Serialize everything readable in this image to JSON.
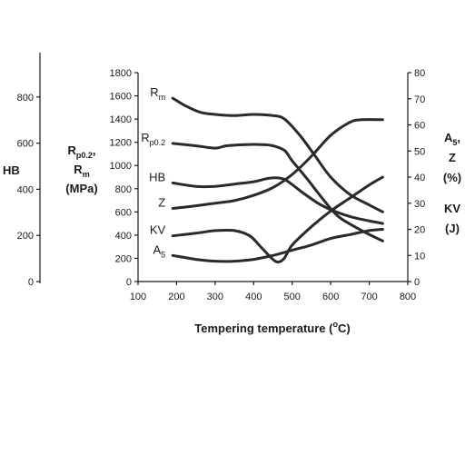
{
  "chart_data": {
    "type": "line",
    "xlabel": "Tempering temperature (",
    "xlabel_sup": "o",
    "xlabel_tail": "C)",
    "xlim": [
      100,
      800
    ],
    "x_ticks": [
      "100",
      "200",
      "300",
      "400",
      "500",
      "600",
      "700",
      "800"
    ],
    "axes": {
      "hb": {
        "title": "HB",
        "range": [
          0,
          1000
        ],
        "ticks": [
          "0",
          "200",
          "400",
          "600",
          "800"
        ]
      },
      "strength": {
        "title_lines": [
          {
            "main": "R",
            "sub": "p0.2",
            "tail": ","
          },
          {
            "main": "R",
            "sub": "m",
            "tail": ""
          },
          {
            "main": "(MPa)",
            "sub": "",
            "tail": ""
          }
        ],
        "range": [
          0,
          1800
        ],
        "ticks": [
          "0",
          "200",
          "400",
          "600",
          "800",
          "1000",
          "1200",
          "1400",
          "1600",
          "1800"
        ]
      },
      "percent": {
        "title_lines": [
          {
            "main": "A",
            "sub": "5",
            "tail": ","
          },
          {
            "main": "Z",
            "sub": "",
            "tail": ""
          },
          {
            "main": "(%)",
            "sub": "",
            "tail": ""
          }
        ],
        "range": [
          0,
          80
        ],
        "ticks": [
          "0",
          "10",
          "20",
          "30",
          "40",
          "50",
          "60",
          "70",
          "80"
        ]
      },
      "kv": {
        "title_lines": [
          {
            "main": "KV",
            "sub": "",
            "tail": ""
          },
          {
            "main": "(J)",
            "sub": "",
            "tail": ""
          }
        ]
      }
    },
    "series": [
      {
        "name": "Rm",
        "label_main": "R",
        "label_sub": "m",
        "axis": "strength",
        "x": [
          190,
          220,
          260,
          300,
          350,
          400,
          450,
          480,
          520,
          560,
          600,
          650,
          700,
          735
        ],
        "y": [
          1580,
          1520,
          1460,
          1440,
          1430,
          1440,
          1430,
          1400,
          1260,
          1080,
          900,
          750,
          660,
          600
        ]
      },
      {
        "name": "Rp0.2",
        "label_main": "R",
        "label_sub": "p0.2",
        "axis": "strength",
        "x": [
          190,
          250,
          300,
          330,
          380,
          420,
          450,
          480,
          500,
          540,
          580,
          620,
          680,
          735
        ],
        "y": [
          1190,
          1170,
          1150,
          1170,
          1180,
          1180,
          1170,
          1130,
          1040,
          880,
          710,
          560,
          440,
          350
        ]
      },
      {
        "name": "HB",
        "label_main": "HB",
        "label_sub": "",
        "axis": "strength",
        "x": [
          190,
          250,
          300,
          350,
          400,
          440,
          470,
          490,
          530,
          580,
          650,
          735
        ],
        "y": [
          850,
          820,
          820,
          840,
          860,
          890,
          890,
          860,
          760,
          650,
          560,
          500
        ]
      },
      {
        "name": "Z",
        "label_main": "Z",
        "label_sub": "",
        "axis": "percent",
        "x": [
          190,
          250,
          300,
          350,
          400,
          450,
          500,
          550,
          600,
          650,
          680,
          735
        ],
        "y": [
          28,
          29,
          30,
          31,
          33,
          36,
          41,
          48,
          56,
          61,
          62,
          62
        ]
      },
      {
        "name": "KV",
        "label_main": "KV",
        "label_sub": "",
        "axis": "percent",
        "x": [
          190,
          250,
          300,
          350,
          390,
          420,
          450,
          465,
          480,
          500,
          550,
          600,
          650,
          700,
          735
        ],
        "y": [
          17.5,
          18.5,
          19.5,
          19.5,
          17.5,
          13,
          8.5,
          7.5,
          9,
          14,
          21,
          27,
          32,
          37,
          40
        ]
      },
      {
        "name": "A5",
        "label_main": "A",
        "label_sub": "5",
        "axis": "percent",
        "x": [
          190,
          250,
          300,
          350,
          400,
          450,
          500,
          550,
          600,
          650,
          700,
          735
        ],
        "y": [
          10,
          8.5,
          7.8,
          7.8,
          8.5,
          10,
          12,
          14,
          16.5,
          18,
          19.5,
          20
        ]
      }
    ]
  }
}
